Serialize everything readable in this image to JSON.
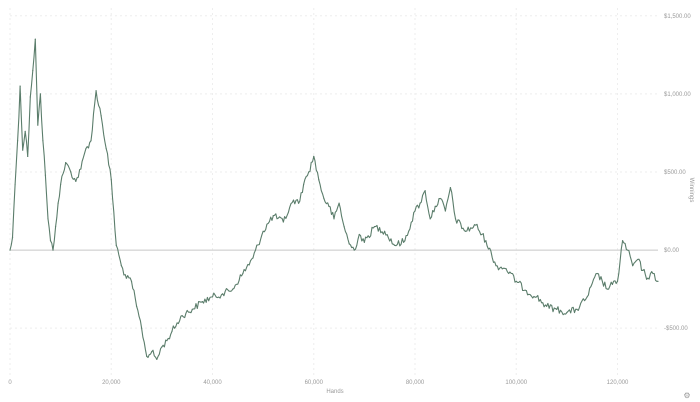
{
  "chart_data": {
    "type": "line",
    "title": "",
    "xlabel": "Hands",
    "ylabel": "Winnings",
    "xlim": [
      0,
      128000
    ],
    "ylim": [
      -800,
      1550
    ],
    "grid": true,
    "x_ticks": [
      {
        "value": 0,
        "label": "0"
      },
      {
        "value": 20000,
        "label": "20,000"
      },
      {
        "value": 40000,
        "label": "40,000"
      },
      {
        "value": 60000,
        "label": "60,000"
      },
      {
        "value": 80000,
        "label": "80,000"
      },
      {
        "value": 100000,
        "label": "100,000"
      },
      {
        "value": 120000,
        "label": "120,000"
      }
    ],
    "y_ticks": [
      {
        "value": 1500,
        "label": "$1,500.00"
      },
      {
        "value": 1000,
        "label": "$1,000.00"
      },
      {
        "value": 500,
        "label": "$500.00"
      },
      {
        "value": 0,
        "label": "$0.00"
      },
      {
        "value": -500,
        "label": "-$500.00"
      }
    ],
    "series": [
      {
        "color": "#5b7d6b",
        "x": [
          0,
          500,
          1000,
          1500,
          2000,
          2500,
          3000,
          3500,
          4000,
          4500,
          5000,
          5500,
          6000,
          6500,
          7000,
          7500,
          8000,
          8500,
          9000,
          9500,
          10000,
          11000,
          12000,
          13000,
          14000,
          15000,
          16000,
          17000,
          18000,
          19000,
          20000,
          21000,
          22000,
          23000,
          24000,
          25000,
          26000,
          27000,
          28000,
          29000,
          30000,
          31000,
          32000,
          34000,
          36000,
          38000,
          40000,
          42000,
          44000,
          46000,
          48000,
          50000,
          52000,
          54000,
          56000,
          57000,
          58000,
          59000,
          60000,
          61000,
          62000,
          63000,
          64000,
          65000,
          66000,
          67000,
          68000,
          69000,
          70000,
          72000,
          74000,
          76000,
          78000,
          80000,
          81000,
          82000,
          83000,
          84000,
          85000,
          86000,
          87000,
          88000,
          90000,
          92000,
          94000,
          96000,
          98000,
          100000,
          102000,
          104000,
          106000,
          108000,
          110000,
          112000,
          114000,
          116000,
          118000,
          119000,
          120000,
          121000,
          122000,
          123000,
          124000,
          125000,
          126000,
          127000,
          128000
        ],
        "y": [
          0,
          80,
          420,
          700,
          1050,
          640,
          760,
          600,
          980,
          1150,
          1350,
          800,
          1000,
          700,
          480,
          200,
          60,
          0,
          150,
          300,
          420,
          560,
          500,
          440,
          520,
          650,
          700,
          1020,
          860,
          650,
          450,
          30,
          -100,
          -180,
          -200,
          -360,
          -500,
          -680,
          -650,
          -700,
          -620,
          -580,
          -520,
          -420,
          -380,
          -330,
          -300,
          -280,
          -250,
          -150,
          -50,
          120,
          220,
          180,
          320,
          300,
          420,
          500,
          600,
          450,
          330,
          280,
          200,
          300,
          150,
          40,
          0,
          100,
          50,
          150,
          120,
          30,
          60,
          250,
          300,
          380,
          200,
          280,
          330,
          250,
          400,
          200,
          120,
          160,
          60,
          -100,
          -120,
          -200,
          -260,
          -300,
          -360,
          -380,
          -400,
          -380,
          -300,
          -150,
          -250,
          -220,
          -200,
          60,
          0,
          -100,
          -60,
          -130,
          -180,
          -150,
          -200
        ]
      }
    ]
  },
  "ui": {
    "settings_icon": "gear-icon",
    "settings_glyph": "⚙"
  }
}
